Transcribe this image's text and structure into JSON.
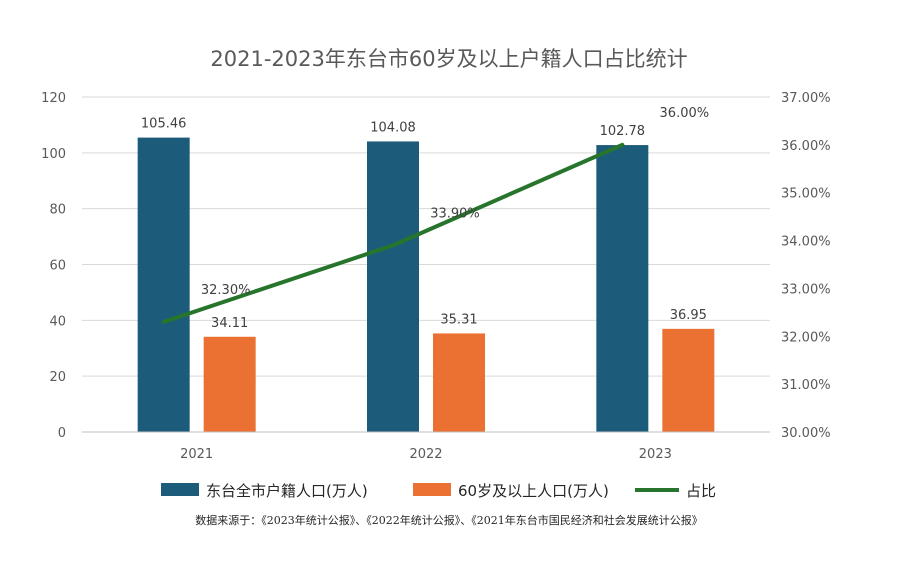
{
  "chart_data": {
    "type": "bar",
    "title": "2021-2023年东台市60岁及以上户籍人口占比统计",
    "categories": [
      "2021",
      "2022",
      "2023"
    ],
    "series": [
      {
        "name": "东台全市户籍人口(万人)",
        "kind": "bar",
        "axis": "left",
        "color": "#1d5b7b",
        "values": [
          105.46,
          104.08,
          102.78
        ],
        "labels": [
          "105.46",
          "104.08",
          "102.78"
        ]
      },
      {
        "name": "60岁及以上人口(万人)",
        "kind": "bar",
        "axis": "left",
        "color": "#ea7131",
        "values": [
          34.11,
          35.31,
          36.95
        ],
        "labels": [
          "34.11",
          "35.31",
          "36.95"
        ]
      },
      {
        "name": "占比",
        "kind": "line",
        "axis": "right",
        "color": "#27752c",
        "values": [
          32.3,
          33.9,
          36.0
        ],
        "labels": [
          "32.30%",
          "33.90%",
          "36.00%"
        ]
      }
    ],
    "y_left": {
      "min": 0,
      "max": 120,
      "step": 20,
      "ticks": [
        "0",
        "20",
        "40",
        "60",
        "80",
        "100",
        "120"
      ]
    },
    "y_right": {
      "min": 30,
      "max": 37,
      "step": 1,
      "ticks": [
        "30.00%",
        "31.00%",
        "32.00%",
        "33.00%",
        "34.00%",
        "35.00%",
        "36.00%",
        "37.00%"
      ]
    },
    "grid": true,
    "legend": "bottom"
  },
  "source_note": "数据来源于：《2023年统计公报》、《2022年统计公报》、《2021年东台市国民经济和社会发展统计公报》"
}
